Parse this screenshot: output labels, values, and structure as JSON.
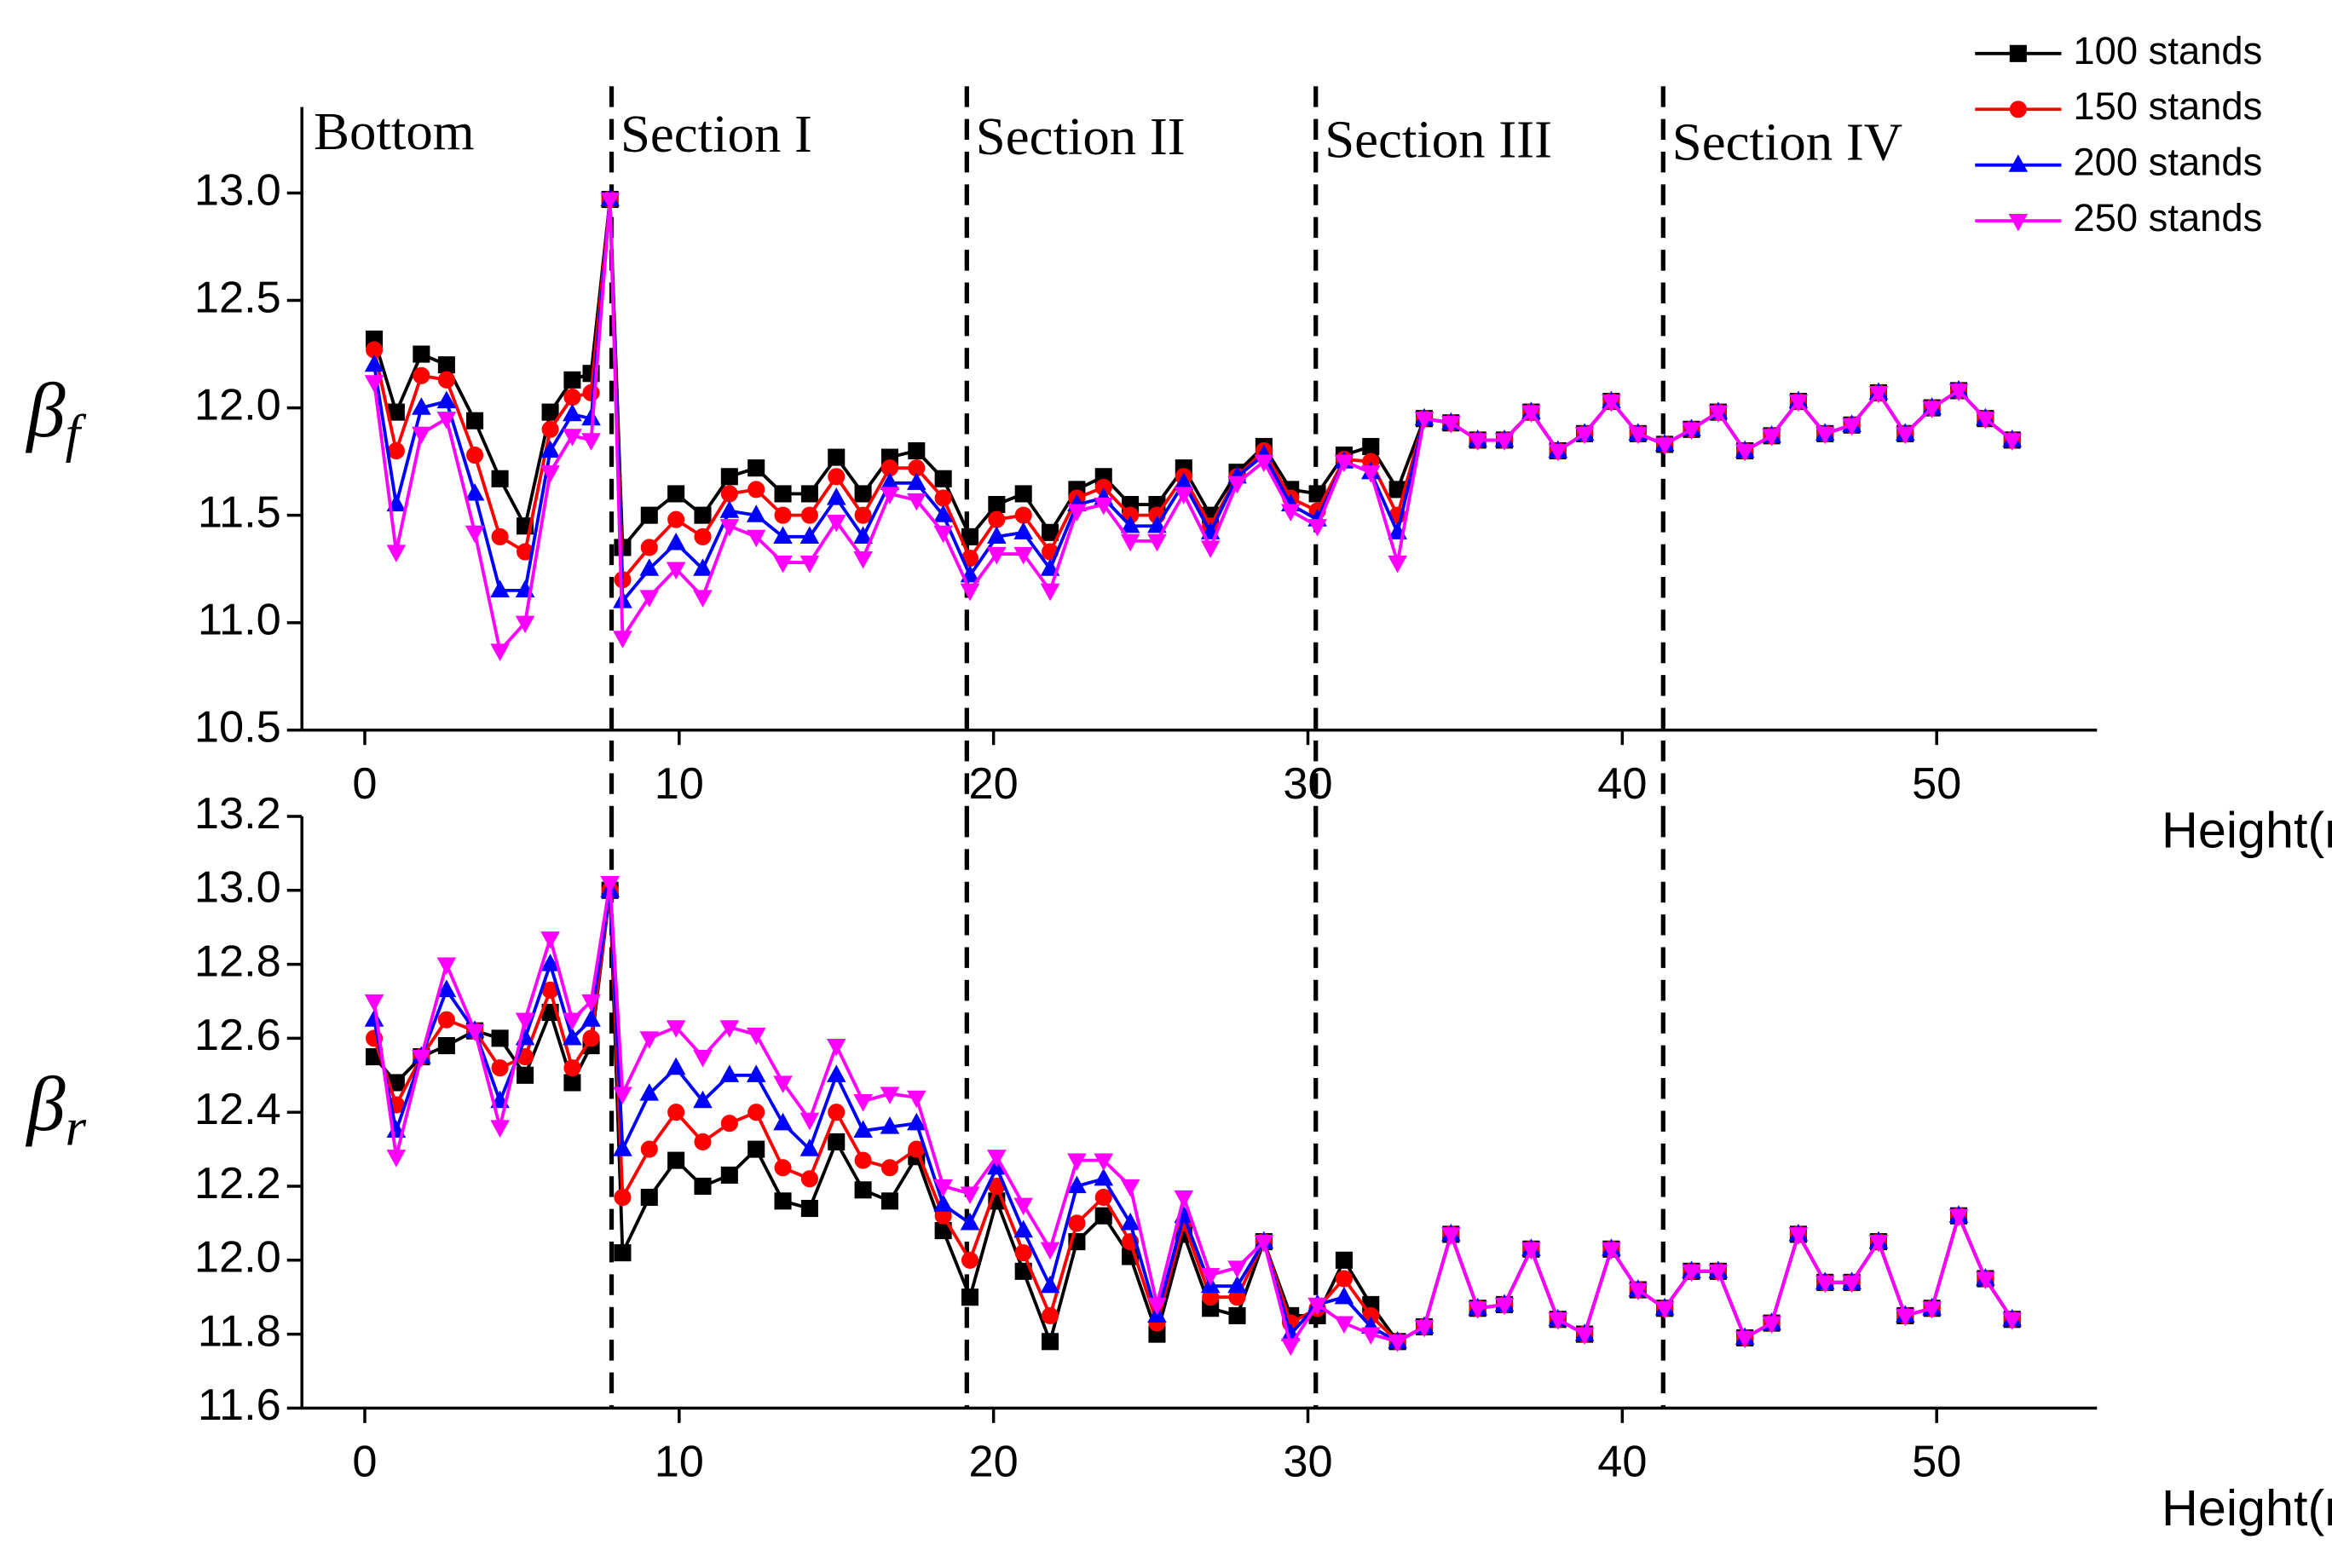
{
  "chart_data": [
    {
      "type": "line",
      "legend": "upper right",
      "ylabel": {
        "symbol": "β",
        "subscript": "f"
      },
      "xlabel": "Height(m)",
      "xlim": [
        -2,
        55.1
      ],
      "xticks": [
        0,
        10,
        20,
        30,
        40,
        50
      ],
      "ylim": [
        10.5,
        13.4
      ],
      "yticks": [
        10.5,
        {
          "value": 11,
          "label": "11.0"
        },
        11.5,
        {
          "value": 12,
          "label": "12.0"
        },
        12.5,
        {
          "value": 13,
          "label": "13.0"
        }
      ],
      "sections": [
        "Bottom",
        "Section I",
        "Section II",
        "Section III",
        "Section IV"
      ],
      "dividers": [
        7.85,
        19.15,
        30.25,
        41.3
      ],
      "x": [
        0.3,
        1.0,
        1.8,
        2.6,
        3.5,
        4.3,
        5.1,
        5.9,
        6.6,
        7.2,
        7.8,
        8.2,
        9.05,
        9.9,
        10.75,
        11.6,
        12.45,
        13.3,
        14.15,
        15.0,
        15.85,
        16.7,
        17.55,
        18.4,
        19.25,
        20.1,
        20.95,
        21.8,
        22.65,
        23.5,
        24.35,
        25.2,
        26.05,
        26.9,
        27.75,
        28.6,
        29.45,
        30.3,
        31.15,
        32.0,
        32.85,
        33.7,
        34.55,
        35.4,
        36.25,
        37.1,
        37.95,
        38.8,
        39.65,
        40.5,
        41.35,
        42.2,
        43.05,
        43.9,
        44.75,
        45.6,
        46.45,
        47.3,
        48.15,
        49.0,
        49.85,
        50.7,
        51.55,
        52.4
      ],
      "series": [
        {
          "name": "100 stands",
          "color": "#000000",
          "marker": "square",
          "values": [
            12.32,
            11.98,
            12.25,
            12.2,
            11.94,
            11.67,
            11.45,
            11.98,
            12.13,
            12.16,
            12.97,
            11.35,
            11.5,
            11.6,
            11.5,
            11.68,
            11.72,
            11.6,
            11.6,
            11.77,
            11.6,
            11.77,
            11.8,
            11.67,
            11.4,
            11.55,
            11.6,
            11.42,
            11.62,
            11.68,
            11.55,
            11.55,
            11.72,
            11.5,
            11.7,
            11.82,
            11.62,
            11.6,
            11.78,
            11.82,
            11.62,
            11.95,
            11.93,
            11.85,
            11.85,
            11.98,
            11.8,
            11.88,
            12.03,
            11.88,
            11.83,
            11.9,
            11.98,
            11.8,
            11.87,
            12.03,
            11.88,
            11.92,
            12.07,
            11.88,
            12.0,
            12.08,
            11.95,
            11.85
          ]
        },
        {
          "name": "150 stands",
          "color": "#ff0000",
          "marker": "circle",
          "values": [
            12.27,
            11.8,
            12.15,
            12.13,
            11.78,
            11.4,
            11.33,
            11.9,
            12.05,
            12.07,
            12.97,
            11.2,
            11.35,
            11.48,
            11.4,
            11.6,
            11.62,
            11.5,
            11.5,
            11.68,
            11.5,
            11.72,
            11.72,
            11.58,
            11.3,
            11.48,
            11.5,
            11.33,
            11.58,
            11.63,
            11.5,
            11.5,
            11.68,
            11.45,
            11.68,
            11.8,
            11.58,
            11.52,
            11.76,
            11.75,
            11.5,
            11.95,
            11.93,
            11.85,
            11.85,
            11.98,
            11.8,
            11.88,
            12.03,
            11.88,
            11.83,
            11.9,
            11.98,
            11.8,
            11.87,
            12.03,
            11.88,
            11.92,
            12.07,
            11.88,
            12.0,
            12.08,
            11.95,
            11.85
          ]
        },
        {
          "name": "200 stands",
          "color": "#0000ff",
          "marker": "triangle-up",
          "values": [
            12.2,
            11.55,
            12.0,
            12.03,
            11.6,
            11.15,
            11.15,
            11.8,
            11.97,
            11.95,
            12.97,
            11.1,
            11.25,
            11.37,
            11.25,
            11.52,
            11.5,
            11.4,
            11.4,
            11.58,
            11.4,
            11.65,
            11.65,
            11.5,
            11.22,
            11.4,
            11.42,
            11.25,
            11.55,
            11.58,
            11.45,
            11.45,
            11.65,
            11.42,
            11.68,
            11.78,
            11.55,
            11.48,
            11.75,
            11.7,
            11.42,
            11.95,
            11.93,
            11.85,
            11.85,
            11.98,
            11.8,
            11.88,
            12.03,
            11.88,
            11.83,
            11.9,
            11.98,
            11.8,
            11.87,
            12.03,
            11.88,
            11.92,
            12.07,
            11.88,
            12.0,
            12.08,
            11.95,
            11.85
          ]
        },
        {
          "name": "250 stands",
          "color": "#ff00ff",
          "marker": "triangle-down",
          "values": [
            12.12,
            11.33,
            11.88,
            11.95,
            11.42,
            10.87,
            11.0,
            11.7,
            11.87,
            11.85,
            12.97,
            10.93,
            11.12,
            11.25,
            11.12,
            11.45,
            11.4,
            11.28,
            11.28,
            11.47,
            11.3,
            11.6,
            11.57,
            11.42,
            11.15,
            11.32,
            11.32,
            11.15,
            11.52,
            11.55,
            11.38,
            11.38,
            11.6,
            11.35,
            11.65,
            11.75,
            11.52,
            11.45,
            11.75,
            11.7,
            11.28,
            11.95,
            11.93,
            11.85,
            11.85,
            11.98,
            11.8,
            11.88,
            12.03,
            11.88,
            11.83,
            11.9,
            11.98,
            11.8,
            11.87,
            12.03,
            11.88,
            11.92,
            12.07,
            11.88,
            12.0,
            12.08,
            11.95,
            11.85
          ]
        }
      ]
    },
    {
      "type": "line",
      "ylabel": {
        "symbol": "β",
        "subscript": "r"
      },
      "xlabel": "Height(m)",
      "xlim": [
        -2,
        55.1
      ],
      "xticks": [
        0,
        10,
        20,
        30,
        40,
        50
      ],
      "ylim": [
        11.6,
        13.2
      ],
      "yticks": [
        11.6,
        11.8,
        {
          "value": 12,
          "label": "12.0"
        },
        12.2,
        12.4,
        12.6,
        12.8,
        {
          "value": 13,
          "label": "13.0"
        },
        13.2
      ],
      "dividers": [
        7.85,
        19.15,
        30.25,
        41.3
      ],
      "x": [
        0.3,
        1.0,
        1.8,
        2.6,
        3.5,
        4.3,
        5.1,
        5.9,
        6.6,
        7.2,
        7.8,
        8.2,
        9.05,
        9.9,
        10.75,
        11.6,
        12.45,
        13.3,
        14.15,
        15.0,
        15.85,
        16.7,
        17.55,
        18.4,
        19.25,
        20.1,
        20.95,
        21.8,
        22.65,
        23.5,
        24.35,
        25.2,
        26.05,
        26.9,
        27.75,
        28.6,
        29.45,
        30.3,
        31.15,
        32.0,
        32.85,
        33.7,
        34.55,
        35.4,
        36.25,
        37.1,
        37.95,
        38.8,
        39.65,
        40.5,
        41.35,
        42.2,
        43.05,
        43.9,
        44.75,
        45.6,
        46.45,
        47.3,
        48.15,
        49.0,
        49.85,
        50.7,
        51.55,
        52.4
      ],
      "series": [
        {
          "name": "100 stands",
          "color": "#000000",
          "marker": "square",
          "values": [
            12.55,
            12.48,
            12.55,
            12.58,
            12.62,
            12.6,
            12.5,
            12.67,
            12.48,
            12.58,
            13.0,
            12.02,
            12.17,
            12.27,
            12.2,
            12.23,
            12.3,
            12.16,
            12.14,
            12.32,
            12.19,
            12.16,
            12.28,
            12.08,
            11.9,
            12.16,
            11.97,
            11.78,
            12.05,
            12.12,
            12.01,
            11.8,
            12.07,
            11.87,
            11.85,
            12.05,
            11.85,
            11.85,
            12.0,
            11.88,
            11.78,
            11.82,
            12.07,
            11.87,
            11.88,
            12.03,
            11.84,
            11.8,
            12.03,
            11.92,
            11.87,
            11.97,
            11.97,
            11.79,
            11.83,
            12.07,
            11.94,
            11.94,
            12.05,
            11.85,
            11.87,
            12.12,
            11.95,
            11.84
          ]
        },
        {
          "name": "150 stands",
          "color": "#ff0000",
          "marker": "circle",
          "values": [
            12.6,
            12.42,
            12.55,
            12.65,
            12.62,
            12.52,
            12.55,
            12.73,
            12.52,
            12.6,
            13.0,
            12.17,
            12.3,
            12.4,
            12.32,
            12.37,
            12.4,
            12.25,
            12.22,
            12.4,
            12.27,
            12.25,
            12.3,
            12.12,
            12.0,
            12.2,
            12.02,
            11.85,
            12.1,
            12.17,
            12.05,
            11.83,
            12.1,
            11.9,
            11.9,
            12.05,
            11.83,
            11.87,
            11.95,
            11.85,
            11.78,
            11.82,
            12.07,
            11.87,
            11.88,
            12.03,
            11.84,
            11.8,
            12.03,
            11.92,
            11.87,
            11.97,
            11.97,
            11.79,
            11.83,
            12.07,
            11.94,
            11.94,
            12.05,
            11.85,
            11.87,
            12.12,
            11.95,
            11.84
          ]
        },
        {
          "name": "200 stands",
          "color": "#0000ff",
          "marker": "triangle-up",
          "values": [
            12.65,
            12.35,
            12.55,
            12.73,
            12.62,
            12.43,
            12.6,
            12.8,
            12.6,
            12.65,
            13.0,
            12.3,
            12.45,
            12.52,
            12.43,
            12.5,
            12.5,
            12.37,
            12.3,
            12.5,
            12.35,
            12.36,
            12.37,
            12.15,
            12.1,
            12.25,
            12.08,
            11.93,
            12.2,
            12.22,
            12.1,
            11.85,
            12.12,
            11.93,
            11.93,
            12.05,
            11.8,
            11.88,
            11.9,
            11.82,
            11.78,
            11.82,
            12.07,
            11.87,
            11.88,
            12.03,
            11.84,
            11.8,
            12.03,
            11.92,
            11.87,
            11.97,
            11.97,
            11.79,
            11.83,
            12.07,
            11.94,
            11.94,
            12.05,
            11.85,
            11.87,
            12.12,
            11.95,
            11.84
          ]
        },
        {
          "name": "250 stands",
          "color": "#ff00ff",
          "marker": "triangle-down",
          "values": [
            12.7,
            12.28,
            12.55,
            12.8,
            12.62,
            12.36,
            12.65,
            12.87,
            12.65,
            12.7,
            13.02,
            12.45,
            12.6,
            12.63,
            12.55,
            12.63,
            12.61,
            12.48,
            12.38,
            12.58,
            12.43,
            12.45,
            12.44,
            12.2,
            12.18,
            12.28,
            12.15,
            12.03,
            12.27,
            12.27,
            12.2,
            11.88,
            12.17,
            11.96,
            11.98,
            12.05,
            11.77,
            11.88,
            11.83,
            11.8,
            11.78,
            11.82,
            12.07,
            11.87,
            11.88,
            12.03,
            11.84,
            11.8,
            12.03,
            11.92,
            11.87,
            11.97,
            11.97,
            11.79,
            11.83,
            12.07,
            11.94,
            11.94,
            12.05,
            11.85,
            11.87,
            12.12,
            11.95,
            11.84
          ]
        }
      ]
    }
  ]
}
